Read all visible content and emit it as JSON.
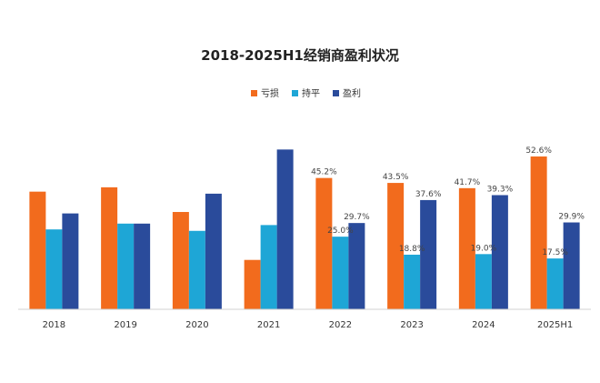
{
  "chart_data": {
    "type": "bar",
    "title": "2018-2025H1经销商盈利状况",
    "categories": [
      "2018",
      "2019",
      "2020",
      "2021",
      "2022",
      "2023",
      "2024",
      "2025H1"
    ],
    "series": [
      {
        "name": "亏损",
        "color": "#F26B1D",
        "values": [
          40.5,
          42.0,
          33.5,
          17.0,
          45.2,
          43.5,
          41.7,
          52.6
        ],
        "labels": [
          null,
          null,
          null,
          null,
          "45.2%",
          "43.5%",
          "41.7%",
          "52.6%"
        ]
      },
      {
        "name": "持平",
        "color": "#1EA6D6",
        "values": [
          27.5,
          29.5,
          27.0,
          29.0,
          25.0,
          18.8,
          19.0,
          17.5
        ],
        "labels": [
          null,
          null,
          null,
          null,
          "25.0%",
          "18.8%",
          "19.0%",
          "17.5%"
        ]
      },
      {
        "name": "盈利",
        "color": "#2A4B9B",
        "values": [
          33.0,
          29.5,
          39.8,
          55.0,
          29.7,
          37.6,
          39.3,
          29.9
        ],
        "labels": [
          null,
          null,
          null,
          null,
          "29.7%",
          "37.6%",
          "39.3%",
          "29.9%"
        ]
      }
    ],
    "ylim": [
      0,
      62
    ],
    "grid": false,
    "legend_position": "top-center",
    "xlabel": "",
    "ylabel": ""
  }
}
